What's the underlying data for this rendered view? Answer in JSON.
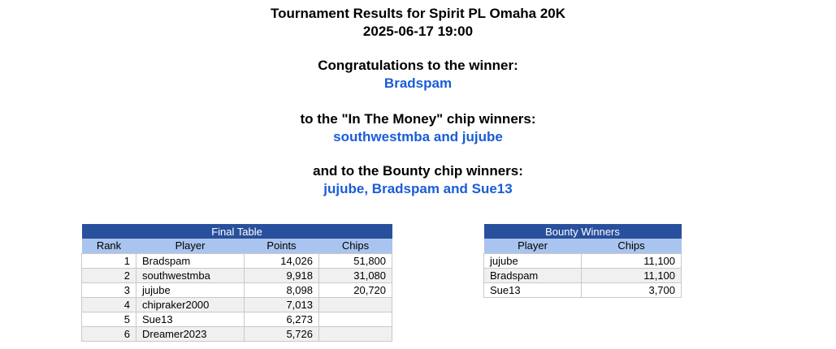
{
  "page": {
    "title_line1": "Tournament Results for Spirit PL Omaha 20K",
    "title_line2": "2025-06-17 19:00",
    "winner_heading": "Congratulations to the winner:",
    "winner_names": "Bradspam",
    "itm_heading": "to the \"In The Money\" chip winners:",
    "itm_names": "southwestmba and jujube",
    "bounty_heading": "and to the Bounty chip winners:",
    "bounty_names": "jujube, Bradspam and Sue13"
  },
  "colors": {
    "table_title_bg": "#29509D",
    "table_header_bg": "#A9C4EE",
    "alt_row_bg": "#F0F0F0",
    "names_text_blue": "#1A5CD8",
    "cell_border": "#C9C9C9"
  },
  "final_table": {
    "title": "Final Table",
    "columns": [
      "Rank",
      "Player",
      "Points",
      "Chips"
    ],
    "rows": [
      {
        "rank": "1",
        "player": "Bradspam",
        "points": "14,026",
        "chips": "51,800"
      },
      {
        "rank": "2",
        "player": "southwestmba",
        "points": "9,918",
        "chips": "31,080"
      },
      {
        "rank": "3",
        "player": "jujube",
        "points": "8,098",
        "chips": "20,720"
      },
      {
        "rank": "4",
        "player": "chipraker2000",
        "points": "7,013",
        "chips": ""
      },
      {
        "rank": "5",
        "player": "Sue13",
        "points": "6,273",
        "chips": ""
      },
      {
        "rank": "6",
        "player": "Dreamer2023",
        "points": "5,726",
        "chips": ""
      }
    ]
  },
  "bounty_table": {
    "title": "Bounty Winners",
    "columns": [
      "Player",
      "Chips"
    ],
    "rows": [
      {
        "player": "jujube",
        "chips": "11,100"
      },
      {
        "player": "Bradspam",
        "chips": "11,100"
      },
      {
        "player": "Sue13",
        "chips": "3,700"
      }
    ]
  }
}
